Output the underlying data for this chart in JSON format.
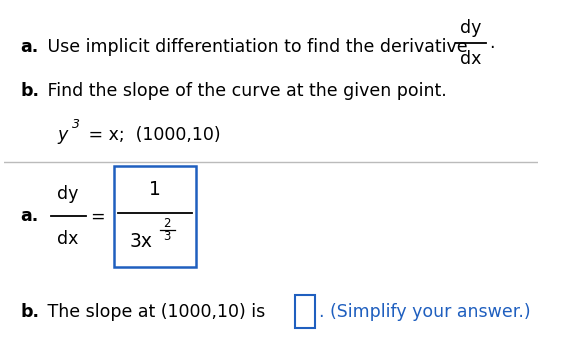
{
  "bg_color": "#ffffff",
  "text_color": "#000000",
  "blue_color": "#1F5FBF",
  "line_color": "#bbbbbb",
  "figsize": [
    5.72,
    3.48
  ],
  "dpi": 100,
  "line1_bold": "a.",
  "line1_regular": " Use implicit differentiation to find the derivative ",
  "line1_frac_num": "dy",
  "line1_frac_den": "dx",
  "line2_bold": "b.",
  "line2_regular": " Find the slope of the curve at the given point.",
  "eq_y": "y",
  "eq_exp": "3",
  "eq_rest": " = x;  (1000,10)",
  "ans_a_label": "a.",
  "ans_a_dy": "dy",
  "ans_a_dx": "dx",
  "ans_a_eq": "=",
  "ans_a_num": "1",
  "ans_a_den_base": "3x",
  "ans_a_den_exp_num": "2",
  "ans_a_den_exp_den": "3",
  "ans_b_prefix": "b.",
  "ans_b_text1": " The slope at (1000,10) is",
  "ans_b_text2": ". (Simplify your answer.)"
}
